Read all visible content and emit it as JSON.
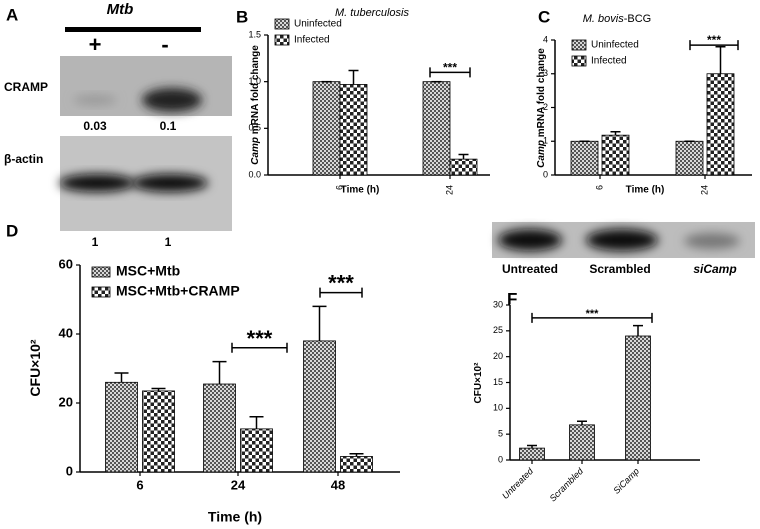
{
  "letters": [
    "A",
    "B",
    "C",
    "D",
    "E",
    "F"
  ],
  "blot_a": {
    "header": "Mtb",
    "conditions": [
      "+",
      "-"
    ],
    "rows": [
      {
        "label": "CRAMP",
        "values": [
          0.03,
          0.1
        ]
      },
      {
        "label": "β-actin",
        "values": [
          1,
          1
        ]
      }
    ]
  },
  "blot_e": {
    "lanes": [
      "Untreated",
      "Scrambled",
      "siCamp"
    ]
  },
  "chart_data": [
    {
      "type": "bar",
      "title": [
        {
          "text": "M. tuberculosis",
          "italic": true
        }
      ],
      "ylabel": [
        {
          "text": "Camp",
          "italic": true
        },
        {
          "text": " mRNA fold change"
        }
      ],
      "xlabel": "Time (h)",
      "categories": [
        "6",
        "24"
      ],
      "series": [
        {
          "name": "Uninfected",
          "values": [
            1.0,
            1.0
          ],
          "errors": [
            0,
            0
          ]
        },
        {
          "name": "Infected",
          "values": [
            0.97,
            0.17
          ],
          "errors": [
            0.15,
            0.05
          ]
        }
      ],
      "ylim": [
        0,
        1.5
      ],
      "yticks": [
        {
          "value": 0,
          "label": "0.0"
        },
        {
          "value": 0.5,
          "label": "0.5"
        },
        {
          "value": 1,
          "label": "1.0"
        },
        {
          "value": 1.5,
          "label": "1.5"
        }
      ],
      "annotations": [
        {
          "text": "***",
          "y": 1.1
        }
      ]
    },
    {
      "type": "bar",
      "title": [
        {
          "text": "M. bovis",
          "italic": true
        },
        {
          "text": "-BCG"
        }
      ],
      "ylabel": [
        {
          "text": "Camp",
          "italic": true
        },
        {
          "text": " mRNA fold change"
        }
      ],
      "xlabel": "Time (h)",
      "categories": [
        "6",
        "24"
      ],
      "series": [
        {
          "name": "Uninfected",
          "values": [
            1.0,
            1.0
          ],
          "errors": [
            0,
            0
          ]
        },
        {
          "name": "Infected",
          "values": [
            1.18,
            3.0
          ],
          "errors": [
            0.1,
            0.8
          ]
        }
      ],
      "ylim": [
        0,
        4
      ],
      "yticks": [
        0,
        1,
        2,
        3,
        4
      ],
      "annotations": [
        {
          "text": "***",
          "y": 3.85
        }
      ]
    },
    {
      "type": "bar",
      "ylabel": [
        {
          "text": "CFU×10²"
        }
      ],
      "xlabel": "Time (h)",
      "categories": [
        "6",
        "24",
        "48"
      ],
      "series": [
        {
          "name": "MSC+Mtb",
          "values": [
            26,
            25.5,
            38
          ],
          "errors": [
            2.7,
            6.5,
            10
          ]
        },
        {
          "name": "MSC+Mtb+CRAMP",
          "values": [
            23.5,
            12.5,
            4.5
          ],
          "errors": [
            0.7,
            3.5,
            0.8
          ]
        }
      ],
      "ylim": [
        0,
        60
      ],
      "yticks": [
        0,
        20,
        40,
        60
      ],
      "annotations": [
        {
          "text": "***",
          "y": 36
        },
        {
          "text": "***",
          "y": 52
        }
      ]
    },
    {
      "type": "bar",
      "ylabel": [
        {
          "text": "CFU×10²"
        }
      ],
      "categories": [
        "Untreated",
        "Scrambled",
        "SiCamp"
      ],
      "series": [
        {
          "values": [
            2.3,
            6.8,
            24
          ],
          "errors": [
            0.5,
            0.7,
            2
          ]
        }
      ],
      "ylim": [
        0,
        30
      ],
      "yticks": [
        0,
        5,
        10,
        15,
        20,
        25,
        30
      ],
      "annotations": [
        {
          "text": "***",
          "y": 27.5
        }
      ]
    }
  ]
}
